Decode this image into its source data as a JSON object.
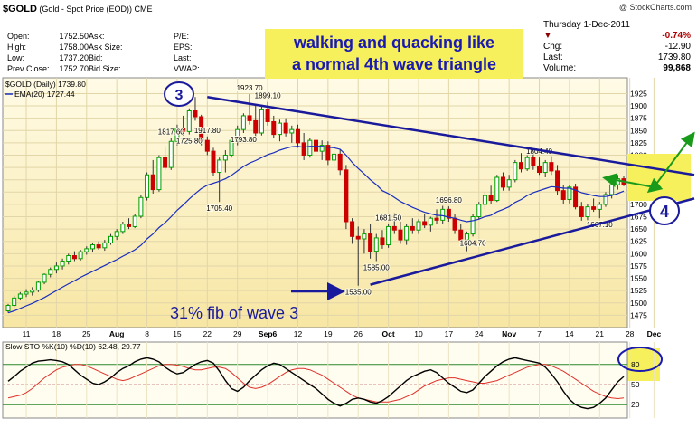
{
  "header": {
    "symbol": "$GOLD",
    "description": "(Gold - Spot Price (EOD))",
    "exchange": "CME",
    "brand": "@ StockCharts.com",
    "quote_rows": [
      {
        "l1": "Open:",
        "v1": "1752.50",
        "l2": "Ask:",
        "v2": "",
        "l3": "P/E:",
        "v3": ""
      },
      {
        "l1": "High:",
        "v1": "1758.00",
        "l2": "Ask Size:",
        "v2": "",
        "l3": "EPS:",
        "v3": ""
      },
      {
        "l1": "Low:",
        "v1": "1737.20",
        "l2": "Bid:",
        "v2": "",
        "l3": "Last:",
        "v3": ""
      },
      {
        "l1": "Prev Close:",
        "v1": "1752.70",
        "l2": "Bid Size:",
        "v2": "",
        "l3": "VWAP:",
        "v3": ""
      }
    ],
    "date": "Thursday  1-Dec-2011",
    "change_pct": "-0.74%",
    "chg_label": "Chg:",
    "chg_value": "-12.90",
    "last_label": "Last:",
    "last_value": "1739.80",
    "volume_label": "Volume:",
    "volume_value": "99,868"
  },
  "banner_text_1": "walking and quacking like",
  "banner_text_2": "a normal 4th wave triangle",
  "legend": {
    "price": "$GOLD (Daily) 1739.80",
    "ema": "EMA(20) 1727.44"
  },
  "annotations": {
    "wave3": "3",
    "wave4": "4",
    "fib": "31% fib of wave 3"
  },
  "colors": {
    "up": "#00a000",
    "down": "#cc0000",
    "ema": "#1a2ec0",
    "trend": "#1a1a9c",
    "arrow": "#1a9a1a",
    "highlight": "#f6f05c"
  },
  "chart_data": [
    {
      "type": "candlestick",
      "title": "$GOLD (Daily) 1739.80",
      "ylim": [
        1450,
        1935
      ],
      "y_ticks": [
        1475,
        1500,
        1525,
        1550,
        1575,
        1600,
        1625,
        1650,
        1675,
        1700,
        1725,
        1750,
        1775,
        1800,
        1825,
        1850,
        1875,
        1900,
        1925
      ],
      "x_ticks": [
        "11",
        "18",
        "25",
        "Aug",
        "8",
        "15",
        "22",
        "29",
        "Sep6",
        "12",
        "19",
        "26",
        "Oct",
        "10",
        "17",
        "24",
        "Nov",
        "7",
        "14",
        "21",
        "28",
        "Dec"
      ],
      "x_tick_index": [
        3,
        8,
        13,
        18,
        23,
        28,
        33,
        38,
        43,
        48,
        53,
        58,
        63,
        68,
        73,
        78,
        83,
        88,
        93,
        98,
        103,
        107
      ],
      "ohlc": [
        [
          1484,
          1498,
          1480,
          1495
        ],
        [
          1495,
          1515,
          1492,
          1510
        ],
        [
          1510,
          1522,
          1505,
          1518
        ],
        [
          1518,
          1528,
          1512,
          1522
        ],
        [
          1522,
          1532,
          1515,
          1526
        ],
        [
          1526,
          1545,
          1522,
          1542
        ],
        [
          1542,
          1560,
          1538,
          1558
        ],
        [
          1558,
          1572,
          1552,
          1568
        ],
        [
          1568,
          1582,
          1560,
          1575
        ],
        [
          1575,
          1590,
          1568,
          1585
        ],
        [
          1585,
          1600,
          1578,
          1596
        ],
        [
          1596,
          1605,
          1585,
          1590
        ],
        [
          1590,
          1608,
          1586,
          1604
        ],
        [
          1604,
          1615,
          1598,
          1610
        ],
        [
          1610,
          1622,
          1604,
          1618
        ],
        [
          1618,
          1625,
          1608,
          1612
        ],
        [
          1612,
          1628,
          1606,
          1622
        ],
        [
          1622,
          1640,
          1618,
          1635
        ],
        [
          1635,
          1650,
          1628,
          1645
        ],
        [
          1645,
          1665,
          1640,
          1660
        ],
        [
          1660,
          1672,
          1650,
          1655
        ],
        [
          1655,
          1680,
          1652,
          1676
        ],
        [
          1676,
          1720,
          1672,
          1714
        ],
        [
          1714,
          1765,
          1708,
          1760
        ],
        [
          1760,
          1790,
          1722,
          1730
        ],
        [
          1730,
          1800,
          1726,
          1795
        ],
        [
          1795,
          1818,
          1770,
          1775
        ],
        [
          1775,
          1835,
          1770,
          1828
        ],
        [
          1828,
          1862,
          1820,
          1855
        ],
        [
          1855,
          1880,
          1840,
          1848
        ],
        [
          1848,
          1895,
          1842,
          1890
        ],
        [
          1890,
          1918,
          1870,
          1878
        ],
        [
          1878,
          1882,
          1820,
          1830
        ],
        [
          1830,
          1838,
          1800,
          1808
        ],
        [
          1808,
          1815,
          1758,
          1765
        ],
        [
          1765,
          1795,
          1705,
          1790
        ],
        [
          1790,
          1810,
          1765,
          1800
        ],
        [
          1800,
          1835,
          1795,
          1830
        ],
        [
          1830,
          1860,
          1820,
          1852
        ],
        [
          1852,
          1885,
          1845,
          1880
        ],
        [
          1880,
          1924,
          1862,
          1870
        ],
        [
          1870,
          1902,
          1835,
          1845
        ],
        [
          1845,
          1900,
          1840,
          1892
        ],
        [
          1892,
          1908,
          1860,
          1868
        ],
        [
          1868,
          1880,
          1835,
          1842
        ],
        [
          1842,
          1872,
          1828,
          1865
        ],
        [
          1865,
          1875,
          1838,
          1845
        ],
        [
          1845,
          1860,
          1825,
          1852
        ],
        [
          1852,
          1862,
          1815,
          1825
        ],
        [
          1825,
          1845,
          1790,
          1800
        ],
        [
          1800,
          1835,
          1795,
          1830
        ],
        [
          1830,
          1842,
          1800,
          1808
        ],
        [
          1808,
          1830,
          1790,
          1820
        ],
        [
          1820,
          1828,
          1780,
          1790
        ],
        [
          1790,
          1810,
          1778,
          1802
        ],
        [
          1802,
          1812,
          1760,
          1770
        ],
        [
          1770,
          1780,
          1650,
          1665
        ],
        [
          1665,
          1672,
          1620,
          1635
        ],
        [
          1635,
          1655,
          1535,
          1630
        ],
        [
          1630,
          1650,
          1600,
          1640
        ],
        [
          1640,
          1660,
          1590,
          1605
        ],
        [
          1605,
          1640,
          1585,
          1632
        ],
        [
          1632,
          1648,
          1610,
          1618
        ],
        [
          1618,
          1660,
          1612,
          1655
        ],
        [
          1655,
          1682,
          1640,
          1648
        ],
        [
          1648,
          1665,
          1620,
          1628
        ],
        [
          1628,
          1660,
          1618,
          1655
        ],
        [
          1655,
          1672,
          1640,
          1648
        ],
        [
          1648,
          1670,
          1640,
          1665
        ],
        [
          1665,
          1680,
          1652,
          1658
        ],
        [
          1658,
          1675,
          1645,
          1672
        ],
        [
          1672,
          1690,
          1660,
          1668
        ],
        [
          1668,
          1697,
          1660,
          1690
        ],
        [
          1690,
          1696,
          1665,
          1672
        ],
        [
          1672,
          1680,
          1640,
          1648
        ],
        [
          1648,
          1660,
          1620,
          1628
        ],
        [
          1628,
          1645,
          1605,
          1640
        ],
        [
          1640,
          1680,
          1635,
          1675
        ],
        [
          1675,
          1705,
          1670,
          1700
        ],
        [
          1700,
          1725,
          1690,
          1718
        ],
        [
          1718,
          1738,
          1700,
          1708
        ],
        [
          1708,
          1760,
          1705,
          1755
        ],
        [
          1755,
          1765,
          1728,
          1735
        ],
        [
          1735,
          1760,
          1728,
          1750
        ],
        [
          1750,
          1790,
          1745,
          1785
        ],
        [
          1785,
          1804,
          1765,
          1772
        ],
        [
          1772,
          1800,
          1768,
          1795
        ],
        [
          1795,
          1802,
          1770,
          1778
        ],
        [
          1778,
          1795,
          1760,
          1765
        ],
        [
          1765,
          1790,
          1755,
          1785
        ],
        [
          1785,
          1798,
          1760,
          1768
        ],
        [
          1768,
          1780,
          1720,
          1728
        ],
        [
          1728,
          1740,
          1700,
          1710
        ],
        [
          1710,
          1740,
          1702,
          1735
        ],
        [
          1735,
          1742,
          1690,
          1695
        ],
        [
          1695,
          1705,
          1667,
          1675
        ],
        [
          1675,
          1700,
          1668,
          1695
        ],
        [
          1695,
          1712,
          1685,
          1690
        ],
        [
          1690,
          1705,
          1672,
          1700
        ],
        [
          1700,
          1725,
          1695,
          1720
        ],
        [
          1720,
          1745,
          1712,
          1740
        ],
        [
          1740,
          1760,
          1730,
          1752
        ],
        [
          1752,
          1758,
          1737,
          1740
        ]
      ],
      "ema20": [
        1480,
        1484,
        1489,
        1494,
        1499,
        1505,
        1511,
        1518,
        1525,
        1532,
        1539,
        1545,
        1552,
        1558,
        1564,
        1570,
        1576,
        1582,
        1588,
        1595,
        1601,
        1608,
        1617,
        1630,
        1640,
        1653,
        1663,
        1675,
        1688,
        1699,
        1711,
        1722,
        1732,
        1739,
        1743,
        1747,
        1752,
        1759,
        1768,
        1777,
        1784,
        1789,
        1795,
        1801,
        1805,
        1810,
        1814,
        1817,
        1818,
        1816,
        1818,
        1818,
        1818,
        1816,
        1815,
        1812,
        1800,
        1785,
        1773,
        1762,
        1750,
        1740,
        1728,
        1722,
        1714,
        1706,
        1700,
        1694,
        1689,
        1684,
        1681,
        1678,
        1677,
        1674,
        1672,
        1668,
        1665,
        1667,
        1670,
        1675,
        1678,
        1685,
        1690,
        1695,
        1704,
        1710,
        1718,
        1724,
        1728,
        1732,
        1736,
        1735,
        1733,
        1733,
        1729,
        1724,
        1721,
        1718,
        1716,
        1716,
        1718,
        1722,
        1727
      ],
      "labels": [
        {
          "i": 33,
          "value": "1917.80"
        },
        {
          "i": 40,
          "value": "1923.70"
        },
        {
          "i": 43,
          "value": "1899.10"
        },
        {
          "i": 27,
          "value": "1817.60"
        },
        {
          "i": 30,
          "value": "1725.80"
        },
        {
          "i": 35,
          "value": "1705.40"
        },
        {
          "i": 39,
          "value": "1793.80"
        },
        {
          "i": 63,
          "value": "1681.50"
        },
        {
          "i": 73,
          "value": "1696.80"
        },
        {
          "i": 58,
          "value": "1535.00"
        },
        {
          "i": 61,
          "value": "1585.00"
        },
        {
          "i": 77,
          "value": "1604.70"
        },
        {
          "i": 88,
          "value": "1804.40"
        },
        {
          "i": 98,
          "value": "1667.10"
        }
      ]
    },
    {
      "type": "line",
      "title": "Slow STO %K(10) %D(10) 62.48, 29.77",
      "series": [
        {
          "name": "%K",
          "last": "62.48",
          "values": [
            55,
            62,
            70,
            76,
            82,
            85,
            86,
            87,
            86,
            84,
            80,
            72,
            64,
            58,
            52,
            50,
            54,
            60,
            68,
            74,
            78,
            84,
            88,
            90,
            88,
            84,
            76,
            70,
            66,
            68,
            74,
            80,
            84,
            86,
            82,
            70,
            56,
            44,
            40,
            46,
            56,
            64,
            72,
            78,
            82,
            80,
            74,
            68,
            62,
            56,
            50,
            44,
            36,
            28,
            22,
            18,
            22,
            28,
            30,
            28,
            24,
            22,
            26,
            32,
            40,
            48,
            56,
            62,
            66,
            70,
            72,
            68,
            60,
            52,
            46,
            40,
            38,
            42,
            52,
            62,
            70,
            78,
            84,
            88,
            90,
            88,
            86,
            84,
            82,
            76,
            66,
            54,
            40,
            28,
            20,
            16,
            14,
            16,
            22,
            30,
            42,
            54,
            62
          ]
        },
        {
          "name": "%D",
          "last": "29.77",
          "values": [
            30,
            32,
            34,
            38,
            44,
            52,
            60,
            66,
            72,
            76,
            78,
            80,
            80,
            78,
            74,
            70,
            66,
            62,
            58,
            56,
            58,
            62,
            66,
            70,
            74,
            78,
            80,
            80,
            79,
            77,
            74,
            72,
            72,
            74,
            76,
            76,
            74,
            68,
            60,
            52,
            46,
            44,
            46,
            50,
            56,
            62,
            68,
            72,
            74,
            74,
            72,
            68,
            64,
            58,
            52,
            46,
            40,
            34,
            30,
            28,
            26,
            24,
            24,
            24,
            26,
            28,
            32,
            36,
            42,
            48,
            52,
            56,
            58,
            60,
            60,
            58,
            56,
            54,
            52,
            52,
            54,
            56,
            60,
            64,
            68,
            72,
            76,
            78,
            80,
            80,
            78,
            74,
            70,
            64,
            58,
            52,
            46,
            40,
            36,
            32,
            30,
            29,
            30
          ]
        }
      ],
      "ylim": [
        0,
        100
      ],
      "y_ticks": [
        20,
        50,
        80
      ]
    }
  ]
}
